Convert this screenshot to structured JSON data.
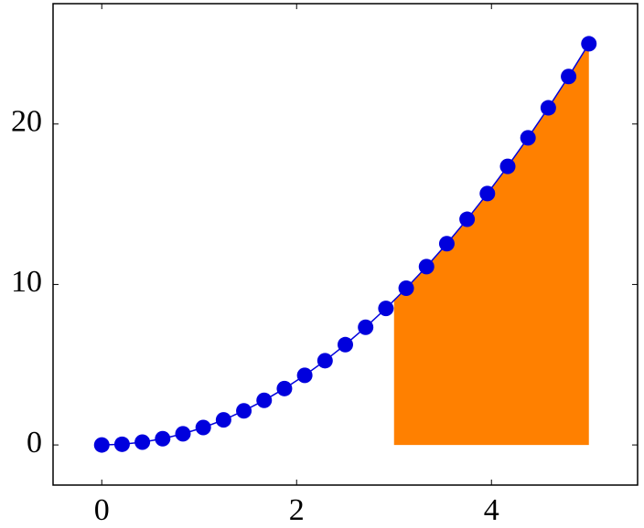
{
  "chart_data": {
    "type": "line",
    "x": [
      0,
      0.2083,
      0.4167,
      0.625,
      0.8333,
      1.0417,
      1.25,
      1.4583,
      1.6667,
      1.875,
      2.0833,
      2.2917,
      2.5,
      2.7083,
      2.9167,
      3.125,
      3.3333,
      3.5417,
      3.75,
      3.9583,
      4.1667,
      4.375,
      4.5833,
      4.7917,
      5
    ],
    "series": [
      {
        "color": "#0000dd",
        "values": [
          0,
          0.0434,
          0.1736,
          0.3906,
          0.6944,
          1.0851,
          1.5625,
          2.1267,
          2.7778,
          3.5156,
          4.3403,
          5.2517,
          6.25,
          7.3351,
          8.5069,
          9.7656,
          11.1111,
          12.5434,
          14.0625,
          15.6684,
          17.3611,
          19.1406,
          21.0069,
          22.9601,
          25
        ]
      }
    ],
    "fill": {
      "x_range": [
        3,
        5
      ],
      "color": "#ff8000"
    },
    "xlim": [
      -0.5,
      5.5
    ],
    "ylim": [
      -2.5,
      27.5
    ],
    "xticks": [
      0,
      2,
      4
    ],
    "yticks": [
      0,
      10,
      20
    ]
  }
}
